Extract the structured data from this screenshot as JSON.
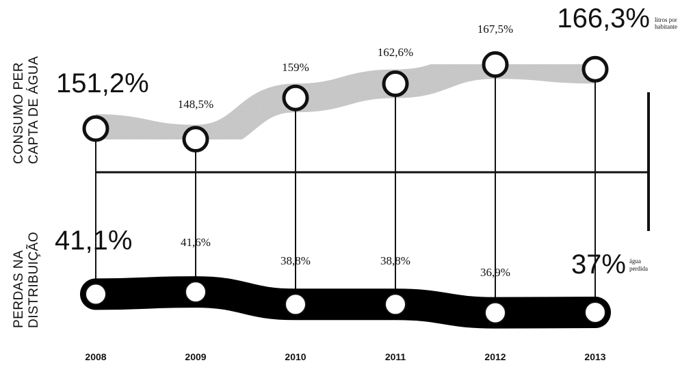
{
  "chart_data": [
    {
      "type": "line",
      "ylabel_lines": [
        "CONSUMO PER",
        "CAPTA DE ÁGUA"
      ],
      "unit_lines": [
        "litros por",
        "habitante"
      ],
      "categories": [
        "2008",
        "2009",
        "2010",
        "2011",
        "2012",
        "2013"
      ],
      "values": [
        151.2,
        148.5,
        159,
        162.6,
        167.5,
        166.3
      ],
      "labels": [
        "151,2%",
        "148,5%",
        "159%",
        "162,6%",
        "167,5%",
        "166,3%"
      ],
      "ylim": [
        146,
        170
      ],
      "band_color": "#cfcfcf"
    },
    {
      "type": "line",
      "ylabel_lines": [
        "PERDAS NA",
        "DISTRIBUIÇÃO"
      ],
      "unit_lines": [
        "água",
        "perdida"
      ],
      "categories": [
        "2008",
        "2009",
        "2010",
        "2011",
        "2012",
        "2013"
      ],
      "values": [
        41.1,
        41.6,
        38.8,
        38.8,
        36.9,
        37
      ],
      "labels": [
        "41,1%",
        "41,6%",
        "38,8%",
        "38,8%",
        "36,9%",
        "37%"
      ],
      "ylim": [
        35,
        43
      ],
      "band_color": "#000000"
    }
  ],
  "xaxis": {
    "ticks": [
      "2008",
      "2009",
      "2010",
      "2011",
      "2012",
      "2013"
    ]
  }
}
